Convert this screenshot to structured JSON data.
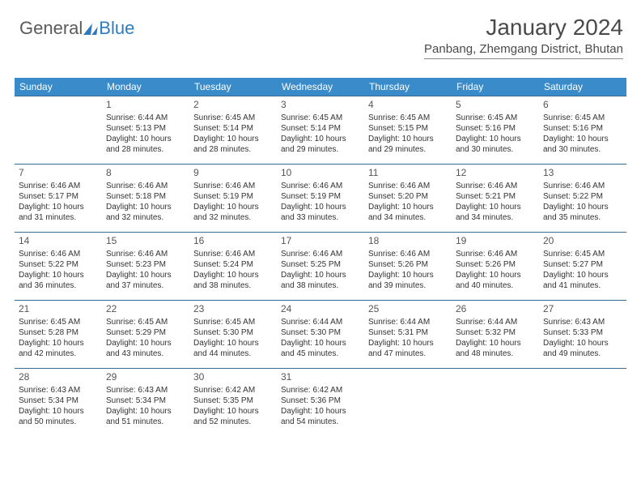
{
  "logo": {
    "part1": "General",
    "part2": "Blue"
  },
  "header": {
    "title": "January 2024",
    "subtitle": "Panbang, Zhemgang District, Bhutan"
  },
  "colors": {
    "header_bg": "#3a8bc9",
    "header_text": "#ffffff",
    "rule": "#3a6a8f",
    "body_text": "#333333",
    "accent": "#2f7bbf"
  },
  "typography": {
    "title_fontsize": 28,
    "subtitle_fontsize": 15,
    "dayhead_fontsize": 12,
    "daynum_fontsize": 12,
    "body_fontsize": 10
  },
  "calendar": {
    "columns": 7,
    "rows": 6,
    "weekday_labels": [
      "Sunday",
      "Monday",
      "Tuesday",
      "Wednesday",
      "Thursday",
      "Friday",
      "Saturday"
    ],
    "start_offset": 1,
    "days": [
      {
        "n": 1,
        "sunrise": "6:44 AM",
        "sunset": "5:13 PM",
        "daylight": "10 hours and 28 minutes."
      },
      {
        "n": 2,
        "sunrise": "6:45 AM",
        "sunset": "5:14 PM",
        "daylight": "10 hours and 28 minutes."
      },
      {
        "n": 3,
        "sunrise": "6:45 AM",
        "sunset": "5:14 PM",
        "daylight": "10 hours and 29 minutes."
      },
      {
        "n": 4,
        "sunrise": "6:45 AM",
        "sunset": "5:15 PM",
        "daylight": "10 hours and 29 minutes."
      },
      {
        "n": 5,
        "sunrise": "6:45 AM",
        "sunset": "5:16 PM",
        "daylight": "10 hours and 30 minutes."
      },
      {
        "n": 6,
        "sunrise": "6:45 AM",
        "sunset": "5:16 PM",
        "daylight": "10 hours and 30 minutes."
      },
      {
        "n": 7,
        "sunrise": "6:46 AM",
        "sunset": "5:17 PM",
        "daylight": "10 hours and 31 minutes."
      },
      {
        "n": 8,
        "sunrise": "6:46 AM",
        "sunset": "5:18 PM",
        "daylight": "10 hours and 32 minutes."
      },
      {
        "n": 9,
        "sunrise": "6:46 AM",
        "sunset": "5:19 PM",
        "daylight": "10 hours and 32 minutes."
      },
      {
        "n": 10,
        "sunrise": "6:46 AM",
        "sunset": "5:19 PM",
        "daylight": "10 hours and 33 minutes."
      },
      {
        "n": 11,
        "sunrise": "6:46 AM",
        "sunset": "5:20 PM",
        "daylight": "10 hours and 34 minutes."
      },
      {
        "n": 12,
        "sunrise": "6:46 AM",
        "sunset": "5:21 PM",
        "daylight": "10 hours and 34 minutes."
      },
      {
        "n": 13,
        "sunrise": "6:46 AM",
        "sunset": "5:22 PM",
        "daylight": "10 hours and 35 minutes."
      },
      {
        "n": 14,
        "sunrise": "6:46 AM",
        "sunset": "5:22 PM",
        "daylight": "10 hours and 36 minutes."
      },
      {
        "n": 15,
        "sunrise": "6:46 AM",
        "sunset": "5:23 PM",
        "daylight": "10 hours and 37 minutes."
      },
      {
        "n": 16,
        "sunrise": "6:46 AM",
        "sunset": "5:24 PM",
        "daylight": "10 hours and 38 minutes."
      },
      {
        "n": 17,
        "sunrise": "6:46 AM",
        "sunset": "5:25 PM",
        "daylight": "10 hours and 38 minutes."
      },
      {
        "n": 18,
        "sunrise": "6:46 AM",
        "sunset": "5:26 PM",
        "daylight": "10 hours and 39 minutes."
      },
      {
        "n": 19,
        "sunrise": "6:46 AM",
        "sunset": "5:26 PM",
        "daylight": "10 hours and 40 minutes."
      },
      {
        "n": 20,
        "sunrise": "6:45 AM",
        "sunset": "5:27 PM",
        "daylight": "10 hours and 41 minutes."
      },
      {
        "n": 21,
        "sunrise": "6:45 AM",
        "sunset": "5:28 PM",
        "daylight": "10 hours and 42 minutes."
      },
      {
        "n": 22,
        "sunrise": "6:45 AM",
        "sunset": "5:29 PM",
        "daylight": "10 hours and 43 minutes."
      },
      {
        "n": 23,
        "sunrise": "6:45 AM",
        "sunset": "5:30 PM",
        "daylight": "10 hours and 44 minutes."
      },
      {
        "n": 24,
        "sunrise": "6:44 AM",
        "sunset": "5:30 PM",
        "daylight": "10 hours and 45 minutes."
      },
      {
        "n": 25,
        "sunrise": "6:44 AM",
        "sunset": "5:31 PM",
        "daylight": "10 hours and 47 minutes."
      },
      {
        "n": 26,
        "sunrise": "6:44 AM",
        "sunset": "5:32 PM",
        "daylight": "10 hours and 48 minutes."
      },
      {
        "n": 27,
        "sunrise": "6:43 AM",
        "sunset": "5:33 PM",
        "daylight": "10 hours and 49 minutes."
      },
      {
        "n": 28,
        "sunrise": "6:43 AM",
        "sunset": "5:34 PM",
        "daylight": "10 hours and 50 minutes."
      },
      {
        "n": 29,
        "sunrise": "6:43 AM",
        "sunset": "5:34 PM",
        "daylight": "10 hours and 51 minutes."
      },
      {
        "n": 30,
        "sunrise": "6:42 AM",
        "sunset": "5:35 PM",
        "daylight": "10 hours and 52 minutes."
      },
      {
        "n": 31,
        "sunrise": "6:42 AM",
        "sunset": "5:36 PM",
        "daylight": "10 hours and 54 minutes."
      }
    ],
    "labels": {
      "sunrise_prefix": "Sunrise: ",
      "sunset_prefix": "Sunset: ",
      "daylight_prefix": "Daylight: "
    }
  }
}
